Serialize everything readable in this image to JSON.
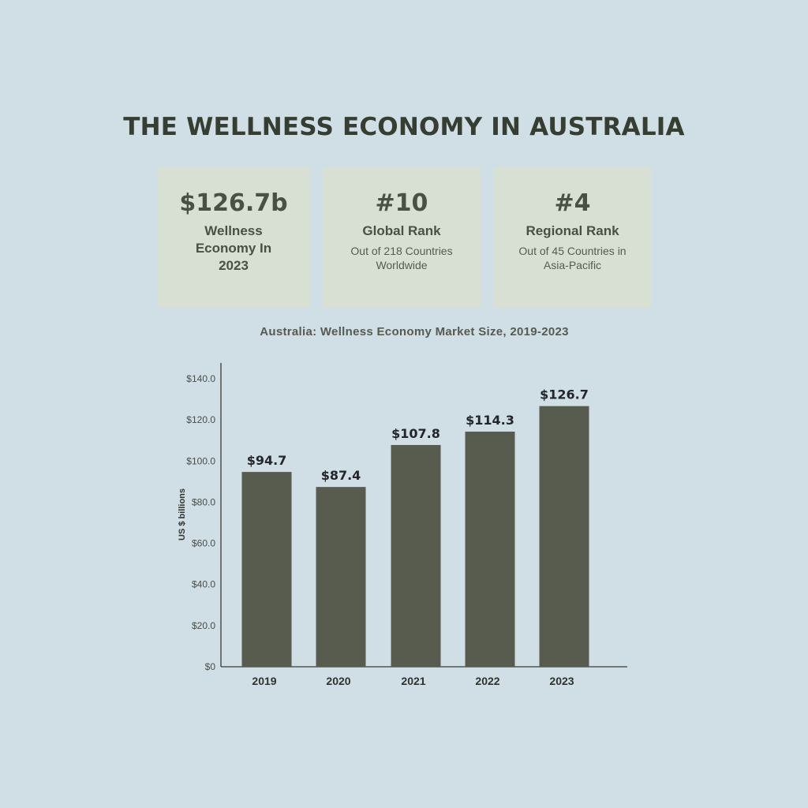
{
  "title": "THE WELLNESS ECONOMY IN AUSTRALIA",
  "stats": [
    {
      "value": "$126.7b",
      "label": "Wellness Economy In 2023",
      "sub": ""
    },
    {
      "value": "#10",
      "label": "Global Rank",
      "sub": "Out of 218 Countries Worldwide"
    },
    {
      "value": "#4",
      "label": "Regional Rank",
      "sub": "Out of 45 Countries in Asia-Pacific"
    }
  ],
  "chart_data": {
    "type": "bar",
    "title": "Australia: Wellness Economy Market Size, 2019-2023",
    "xlabel": "",
    "ylabel": "US $ billions",
    "categories": [
      "2019",
      "2020",
      "2021",
      "2022",
      "2023"
    ],
    "values": [
      94.7,
      87.4,
      107.8,
      114.3,
      126.7
    ],
    "data_labels": [
      "$94.7",
      "$87.4",
      "$107.8",
      "$114.3",
      "$126.7"
    ],
    "ylim": [
      0,
      140
    ],
    "yticks": [
      0,
      20,
      40,
      60,
      80,
      100,
      120,
      140
    ],
    "ytick_labels": [
      "$0",
      "$20.0",
      "$40.0",
      "$60.0",
      "$80.0",
      "$100.0",
      "$120.0",
      "$140.0"
    ],
    "grid": false,
    "legend": "none",
    "bar_color": "#585c4e"
  },
  "colors": {
    "background": "#d0dee5",
    "card": "#d8e0d4",
    "text": "#3e4538"
  }
}
